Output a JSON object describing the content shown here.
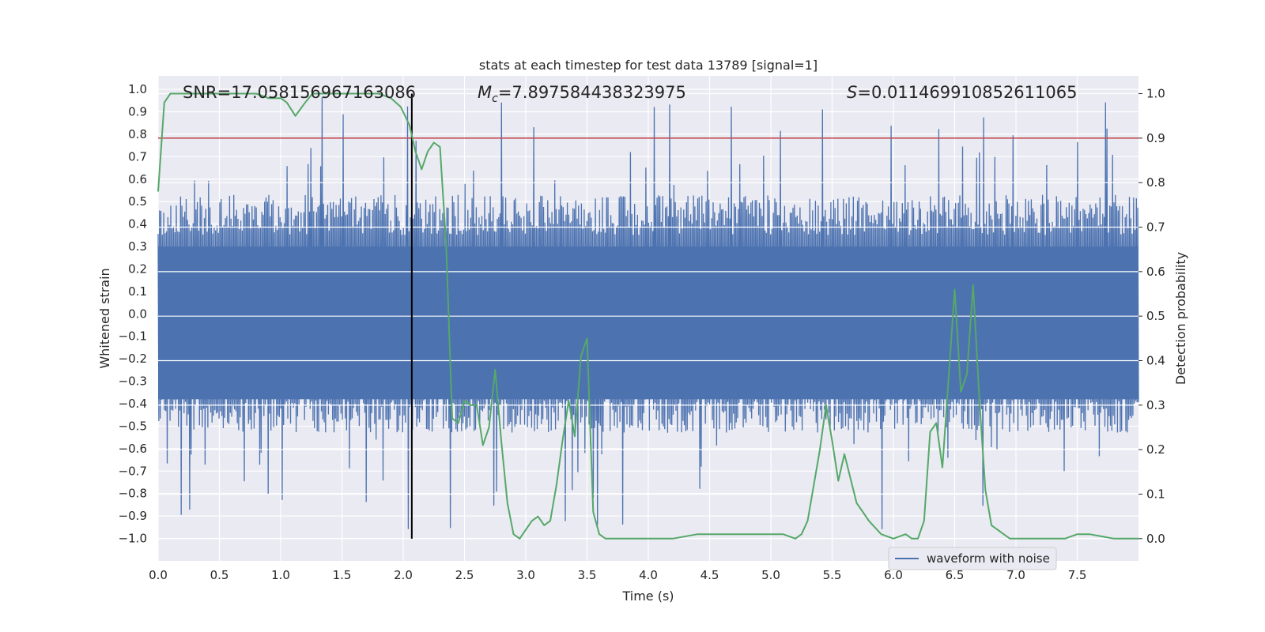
{
  "chart_data": {
    "type": "line",
    "title": "stats at each timestep for test data 13789 [signal=1]",
    "xlabel": "Time (s)",
    "ylabel_left": "Whitened strain",
    "ylabel_right": "Detection probability",
    "xlim": [
      0.0,
      8.0
    ],
    "ylim_left": [
      -1.1,
      1.06
    ],
    "ylim_right": [
      -0.05,
      1.04
    ],
    "x_ticks": [
      "0.0",
      "0.5",
      "1.0",
      "1.5",
      "2.0",
      "2.5",
      "3.0",
      "3.5",
      "4.0",
      "4.5",
      "5.0",
      "5.5",
      "6.0",
      "6.5",
      "7.0",
      "7.5"
    ],
    "x_tick_values": [
      0.0,
      0.5,
      1.0,
      1.5,
      2.0,
      2.5,
      3.0,
      3.5,
      4.0,
      4.5,
      5.0,
      5.5,
      6.0,
      6.5,
      7.0,
      7.5
    ],
    "y_left_ticks": [
      "1.0",
      "0.9",
      "0.8",
      "0.7",
      "0.6",
      "0.5",
      "0.4",
      "0.3",
      "0.2",
      "0.1",
      "0.0",
      "−0.1",
      "−0.2",
      "−0.3",
      "−0.4",
      "−0.5",
      "−0.6",
      "−0.7",
      "−0.8",
      "−0.9",
      "−1.0"
    ],
    "y_left_tick_values": [
      1.0,
      0.9,
      0.8,
      0.7,
      0.6,
      0.5,
      0.4,
      0.3,
      0.2,
      0.1,
      0.0,
      -0.1,
      -0.2,
      -0.3,
      -0.4,
      -0.5,
      -0.6,
      -0.7,
      -0.8,
      -0.9,
      -1.0
    ],
    "y_right_ticks": [
      "1.0",
      "0.9",
      "0.8",
      "0.7",
      "0.6",
      "0.5",
      "0.4",
      "0.3",
      "0.2",
      "0.1",
      "0.0"
    ],
    "y_right_tick_values": [
      1.0,
      0.9,
      0.8,
      0.7,
      0.6,
      0.5,
      0.4,
      0.3,
      0.2,
      0.1,
      0.0
    ],
    "threshold": 0.9,
    "merger_time": 2.07,
    "annotations": {
      "snr": "SNR=17.058156967163086",
      "mc_symbol": "M",
      "mc_subscript": "c",
      "mc_value": "=7.897584438323975",
      "s_symbol": "S",
      "s_value": "=0.011469910852611065"
    },
    "legend": [
      "waveform with noise"
    ],
    "series": [
      {
        "name": "detection probability",
        "axis": "right",
        "x": [
          0.0,
          0.05,
          0.1,
          0.2,
          0.4,
          0.6,
          0.8,
          0.9,
          1.0,
          1.05,
          1.12,
          1.2,
          1.26,
          1.4,
          1.6,
          1.8,
          1.9,
          1.98,
          2.05,
          2.1,
          2.15,
          2.2,
          2.25,
          2.3,
          2.35,
          2.4,
          2.45,
          2.5,
          2.55,
          2.6,
          2.65,
          2.7,
          2.75,
          2.8,
          2.85,
          2.9,
          2.95,
          3.0,
          3.05,
          3.1,
          3.15,
          3.2,
          3.25,
          3.3,
          3.35,
          3.4,
          3.45,
          3.5,
          3.55,
          3.6,
          3.65,
          3.7,
          3.75,
          3.8,
          4.0,
          4.2,
          4.4,
          4.6,
          4.8,
          5.0,
          5.1,
          5.2,
          5.25,
          5.3,
          5.4,
          5.45,
          5.5,
          5.55,
          5.6,
          5.7,
          5.75,
          5.8,
          5.9,
          6.0,
          6.1,
          6.15,
          6.2,
          6.25,
          6.3,
          6.35,
          6.4,
          6.45,
          6.5,
          6.55,
          6.6,
          6.65,
          6.7,
          6.75,
          6.8,
          6.85,
          6.9,
          6.95,
          7.0,
          7.2,
          7.4,
          7.5,
          7.6,
          7.8,
          8.0
        ],
        "values": [
          0.78,
          0.98,
          1.0,
          1.0,
          1.0,
          1.0,
          1.0,
          0.99,
          0.99,
          0.98,
          0.95,
          0.98,
          1.0,
          1.0,
          1.0,
          1.0,
          0.99,
          0.97,
          0.93,
          0.87,
          0.83,
          0.87,
          0.89,
          0.88,
          0.66,
          0.27,
          0.26,
          0.31,
          0.3,
          0.3,
          0.21,
          0.25,
          0.38,
          0.22,
          0.08,
          0.01,
          0.0,
          0.02,
          0.04,
          0.05,
          0.03,
          0.04,
          0.12,
          0.22,
          0.31,
          0.23,
          0.41,
          0.45,
          0.06,
          0.01,
          0.0,
          0.0,
          0.0,
          0.0,
          0.0,
          0.0,
          0.01,
          0.01,
          0.01,
          0.01,
          0.01,
          0.0,
          0.01,
          0.04,
          0.2,
          0.3,
          0.22,
          0.13,
          0.19,
          0.08,
          0.06,
          0.04,
          0.01,
          0.0,
          0.01,
          0.0,
          0.0,
          0.04,
          0.24,
          0.26,
          0.16,
          0.36,
          0.56,
          0.33,
          0.37,
          0.57,
          0.32,
          0.11,
          0.03,
          0.02,
          0.01,
          0.0,
          0.0,
          0.0,
          0.0,
          0.01,
          0.01,
          0.0,
          0.0
        ]
      }
    ],
    "colors": {
      "background": "#eaeaf2",
      "grid": "#ffffff",
      "waveform": "#4c72b0",
      "probability": "#55a868",
      "threshold": "#c44e52",
      "merger": "#000000",
      "text": "#262626"
    }
  }
}
